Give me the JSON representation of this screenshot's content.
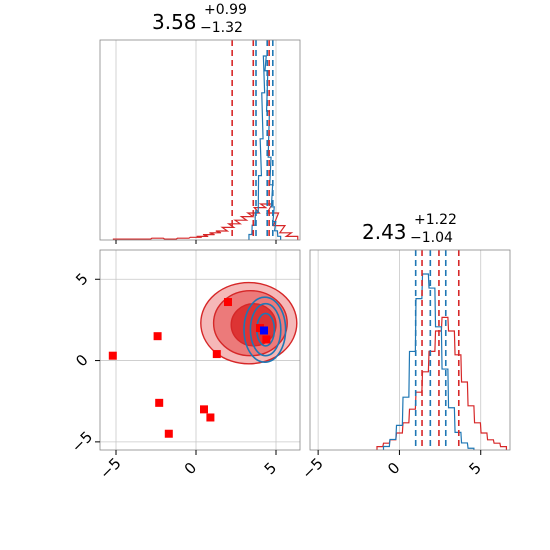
{
  "colors": {
    "red": "#d62728",
    "red_fill_outer": "#f5b8b8",
    "red_fill_mid": "#ec7a7a",
    "red_fill_inner": "#dd3434",
    "blue": "#1f77b4",
    "marker_red": "#ff0000",
    "marker_blue": "#0000ff",
    "grid": "#c8c8c8",
    "axis": "#000000"
  },
  "titles": {
    "x": {
      "value": "3.58",
      "plus": "+0.99",
      "minus": "−1.32"
    },
    "y": {
      "value": "2.43",
      "plus": "+1.22",
      "minus": "−1.04"
    }
  },
  "chart_data": [
    {
      "type": "histogram",
      "panel": "top-left (x marginal)",
      "xlim": [
        -6,
        6.5
      ],
      "grid": true,
      "quantile_lines": {
        "red": [
          2.26,
          3.58,
          4.57
        ],
        "blue": [
          3.75,
          4.45,
          4.8
        ]
      },
      "series": [
        {
          "color": "red",
          "bins_x": [
            -4.8,
            -4.0,
            -3.2,
            -2.4,
            -1.6,
            -0.8,
            0.0,
            0.4,
            0.8,
            1.2,
            1.6,
            2.0,
            2.4,
            2.8,
            3.2,
            3.6,
            4.0,
            4.4,
            4.8,
            5.2,
            5.6,
            6.0
          ],
          "values": [
            0.01,
            0.01,
            0.01,
            0.02,
            0.01,
            0.02,
            0.03,
            0.04,
            0.06,
            0.08,
            0.1,
            0.14,
            0.18,
            0.22,
            0.26,
            0.3,
            0.36,
            0.4,
            0.3,
            0.16,
            0.08,
            0.04
          ]
        },
        {
          "color": "blue",
          "bins_x": [
            3.4,
            3.6,
            3.8,
            4.0,
            4.1,
            4.2,
            4.3,
            4.4,
            4.5,
            4.6,
            4.7,
            4.8,
            4.9,
            5.0,
            5.2
          ],
          "values": [
            0.03,
            0.08,
            0.15,
            0.35,
            0.55,
            0.8,
            1.0,
            0.92,
            0.7,
            0.45,
            0.3,
            0.18,
            0.1,
            0.05,
            0.02
          ]
        }
      ]
    },
    {
      "type": "histogram",
      "panel": "bottom-right (y marginal)",
      "xlim": [
        -5.5,
        6.8
      ],
      "xticks": [
        "−5",
        "0",
        "5"
      ],
      "grid": true,
      "quantile_lines": {
        "red": [
          1.39,
          2.43,
          3.65
        ],
        "blue": [
          1.0,
          1.9,
          2.85
        ]
      },
      "series": [
        {
          "color": "red",
          "bins_x": [
            -1.2,
            -0.8,
            -0.4,
            0.0,
            0.4,
            0.8,
            1.2,
            1.6,
            2.0,
            2.4,
            2.8,
            3.2,
            3.6,
            4.0,
            4.4,
            4.8,
            5.2,
            5.6,
            6.0,
            6.4
          ],
          "values": [
            0.02,
            0.04,
            0.06,
            0.1,
            0.16,
            0.24,
            0.34,
            0.46,
            0.58,
            0.7,
            0.78,
            0.7,
            0.56,
            0.4,
            0.26,
            0.16,
            0.1,
            0.06,
            0.04,
            0.02
          ]
        },
        {
          "color": "blue",
          "bins_x": [
            -0.8,
            -0.4,
            0.0,
            0.4,
            0.8,
            1.2,
            1.6,
            2.0,
            2.4,
            2.8,
            3.2,
            3.6,
            4.0,
            4.4
          ],
          "values": [
            0.02,
            0.06,
            0.14,
            0.3,
            0.56,
            0.86,
            1.0,
            0.92,
            0.7,
            0.46,
            0.24,
            0.1,
            0.04,
            0.01
          ]
        }
      ]
    },
    {
      "type": "scatter",
      "panel": "bottom-left (2D joint)",
      "xlim": [
        -6,
        6.5
      ],
      "ylim": [
        -5.5,
        6.8
      ],
      "xticks": [
        "−5",
        "0",
        "5"
      ],
      "yticks": [
        "−5",
        "0",
        "5"
      ],
      "grid": true,
      "red_markers": [
        [
          -5.2,
          0.3
        ],
        [
          -2.4,
          1.5
        ],
        [
          -2.3,
          -2.6
        ],
        [
          -1.7,
          -4.5
        ],
        [
          0.5,
          -3.0
        ],
        [
          0.9,
          -3.5
        ],
        [
          1.3,
          0.4
        ],
        [
          2.0,
          3.6
        ],
        [
          4.0,
          2.0
        ],
        [
          4.4,
          1.3
        ]
      ],
      "blue_markers": [
        [
          4.25,
          1.85
        ]
      ],
      "red_contours": [
        {
          "level": "outer",
          "center": [
            3.3,
            2.3
          ],
          "radii": [
            3.0,
            2.5
          ]
        },
        {
          "level": "mid",
          "center": [
            3.4,
            2.3
          ],
          "radii": [
            2.3,
            2.0
          ]
        },
        {
          "level": "inner",
          "center": [
            3.6,
            2.2
          ],
          "radii": [
            1.4,
            1.3
          ]
        }
      ],
      "blue_contours": [
        {
          "level": "outer",
          "center": [
            4.3,
            1.9
          ],
          "radii": [
            1.3,
            2.0
          ]
        },
        {
          "level": "mid",
          "center": [
            4.35,
            1.9
          ],
          "radii": [
            0.95,
            1.6
          ]
        },
        {
          "level": "inner",
          "center": [
            4.35,
            1.9
          ],
          "radii": [
            0.55,
            1.0
          ]
        }
      ]
    }
  ]
}
